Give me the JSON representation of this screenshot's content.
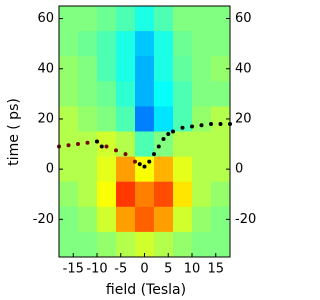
{
  "chart_data": {
    "type": "heatmap",
    "x_label": "field (Tesla)",
    "y_label": "time ( ps)",
    "xlim": [
      -18,
      18
    ],
    "ylim": [
      -35,
      65
    ],
    "y2lim": [
      -35,
      65
    ],
    "xticks": [
      -15,
      -10,
      -5,
      0,
      5,
      10,
      15
    ],
    "yticks": [
      -20,
      0,
      20,
      40,
      60
    ],
    "y2ticks": [
      -20,
      0,
      20,
      40,
      60
    ],
    "colormap": "jet",
    "zlim": [
      0,
      1
    ],
    "heatmap": {
      "x": [
        -16,
        -12,
        -8,
        -4,
        0,
        4,
        8,
        12,
        16
      ],
      "y": [
        60,
        50,
        40,
        30,
        20,
        10,
        0,
        -10,
        -20,
        -30
      ],
      "z": [
        [
          0.5,
          0.5,
          0.48,
          0.45,
          0.4,
          0.45,
          0.5,
          0.5,
          0.5
        ],
        [
          0.5,
          0.48,
          0.45,
          0.4,
          0.32,
          0.4,
          0.48,
          0.5,
          0.5
        ],
        [
          0.52,
          0.5,
          0.45,
          0.4,
          0.3,
          0.4,
          0.47,
          0.5,
          0.52
        ],
        [
          0.52,
          0.5,
          0.48,
          0.42,
          0.3,
          0.38,
          0.45,
          0.5,
          0.5
        ],
        [
          0.55,
          0.52,
          0.5,
          0.45,
          0.25,
          0.35,
          0.45,
          0.52,
          0.55
        ],
        [
          0.55,
          0.55,
          0.58,
          0.55,
          0.45,
          0.5,
          0.55,
          0.55,
          0.55
        ],
        [
          0.55,
          0.55,
          0.6,
          0.72,
          0.62,
          0.7,
          0.6,
          0.55,
          0.55
        ],
        [
          0.52,
          0.55,
          0.62,
          0.82,
          0.75,
          0.8,
          0.65,
          0.55,
          0.52
        ],
        [
          0.5,
          0.52,
          0.58,
          0.72,
          0.78,
          0.72,
          0.58,
          0.52,
          0.5
        ],
        [
          0.5,
          0.5,
          0.52,
          0.55,
          0.58,
          0.55,
          0.52,
          0.5,
          0.5
        ]
      ]
    },
    "series": [
      {
        "color": "#7a0a00",
        "x": [
          -18,
          -16,
          -14,
          -12,
          -10,
          -8,
          -6,
          -4,
          -2
        ],
        "values": [
          9,
          9.5,
          10,
          10.5,
          11,
          9,
          7.5,
          6,
          3
        ]
      },
      {
        "color": "#000000",
        "x": [
          -10,
          -9,
          -1,
          0,
          1,
          2,
          3,
          4,
          5,
          6,
          8,
          10,
          12,
          14,
          16,
          18
        ],
        "values": [
          11,
          9,
          2,
          1,
          3,
          6,
          9,
          12,
          14,
          15,
          16.5,
          17,
          17.5,
          18,
          18,
          18
        ]
      }
    ]
  }
}
